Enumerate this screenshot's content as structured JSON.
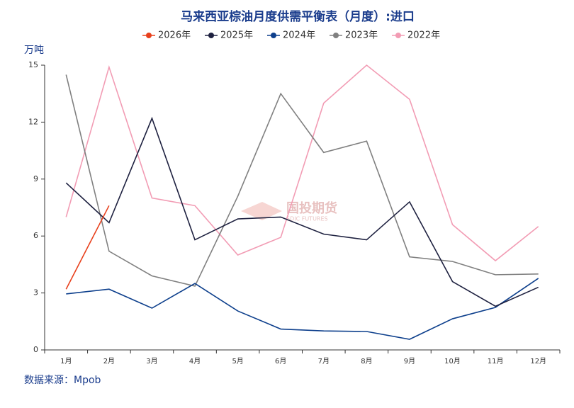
{
  "chart_data": {
    "type": "line",
    "title": "马来西亚棕油月度供需平衡表（月度）:进口",
    "y_label": "万吨",
    "source": "数据来源：Mpob",
    "watermark": "国投期货",
    "watermark_sub": "SDIC FUTURES",
    "categories": [
      "1月",
      "2月",
      "3月",
      "4月",
      "5月",
      "6月",
      "7月",
      "8月",
      "9月",
      "10月",
      "11月",
      "12月"
    ],
    "series": [
      {
        "name": "2026年",
        "color": "#e8401c",
        "values": [
          3.2,
          7.6,
          null,
          null,
          null,
          null,
          null,
          null,
          null,
          null,
          null,
          null
        ]
      },
      {
        "name": "2025年",
        "color": "#1e2140",
        "values": [
          8.8,
          6.7,
          12.2,
          5.8,
          6.9,
          7.0,
          6.1,
          5.8,
          7.8,
          3.6,
          2.3,
          3.3
        ]
      },
      {
        "name": "2024年",
        "color": "#0d3f8c",
        "values": [
          2.95,
          3.2,
          2.2,
          3.5,
          2.05,
          1.1,
          1.0,
          0.97,
          0.56,
          1.64,
          2.24,
          3.77
        ]
      },
      {
        "name": "2023年",
        "color": "#808080",
        "values": [
          14.5,
          5.2,
          3.9,
          3.36,
          8.1,
          13.5,
          10.4,
          11.0,
          4.9,
          4.66,
          3.96,
          4.0
        ]
      },
      {
        "name": "2022年",
        "color": "#f29cb4",
        "values": [
          7.0,
          14.9,
          8.0,
          7.6,
          5.0,
          5.93,
          13.0,
          15.0,
          13.2,
          6.6,
          4.7,
          6.5
        ]
      }
    ],
    "ylim": [
      0,
      15
    ],
    "yticks": [
      0,
      3,
      6,
      9,
      12,
      15
    ]
  }
}
